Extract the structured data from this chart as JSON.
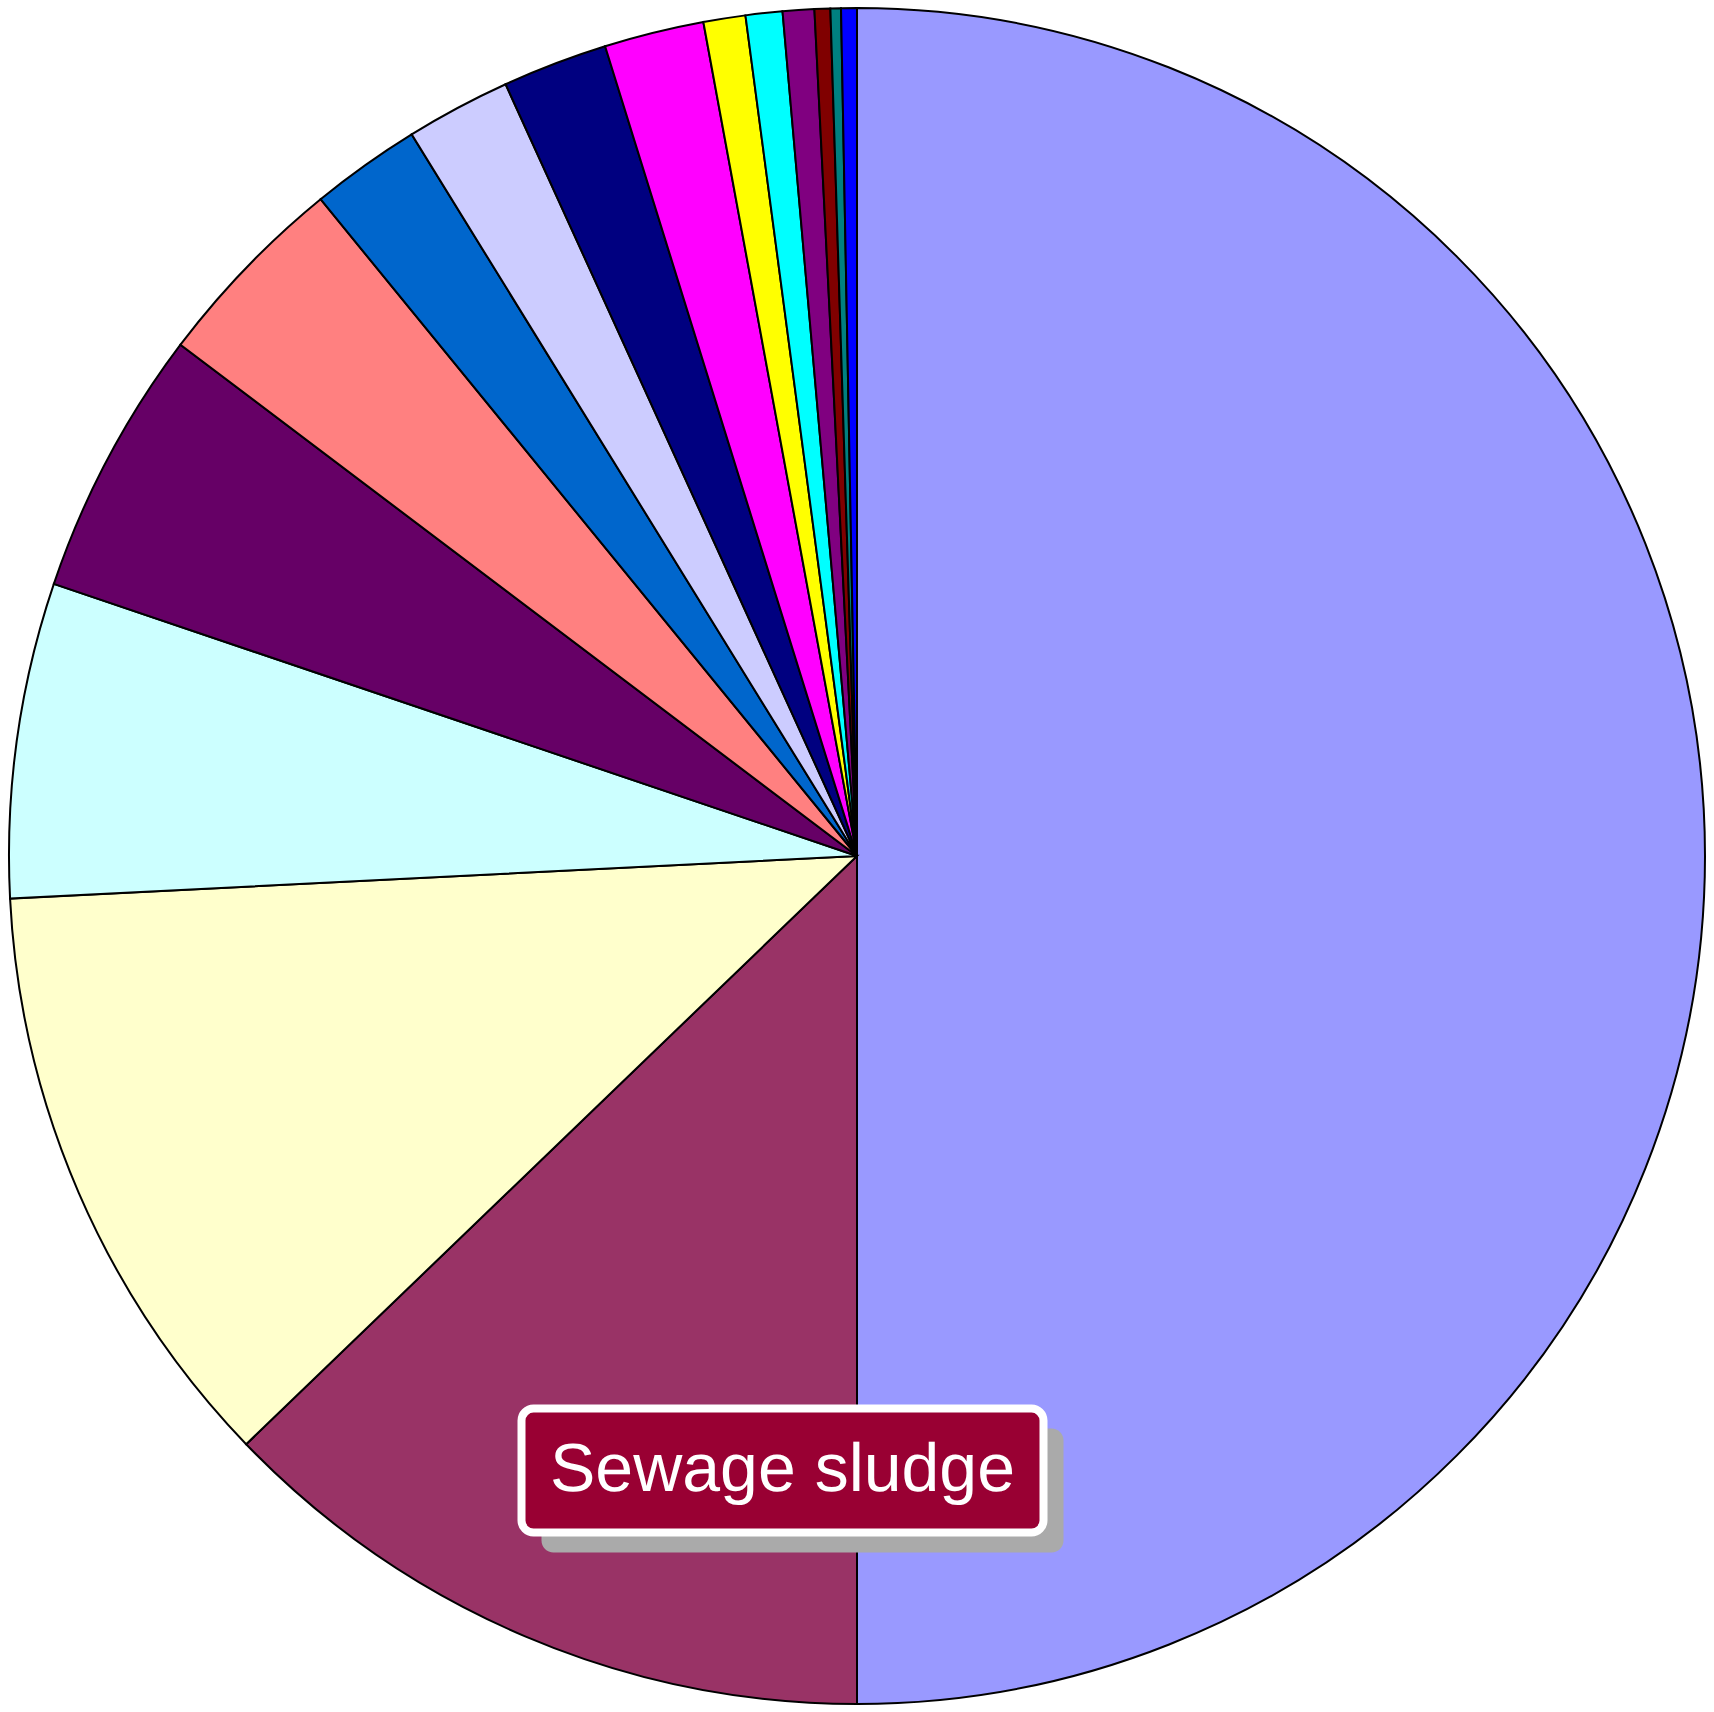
{
  "chart_data": {
    "type": "pie",
    "categories": [
      null,
      "Sewage sludge",
      null,
      null,
      null,
      null,
      null,
      null,
      null,
      null,
      null,
      null,
      null,
      null,
      null,
      null
    ],
    "values": [
      50,
      12.8,
      11.4,
      6.0,
      5.1,
      3.8,
      2.1,
      2.0,
      2.0,
      1.9,
      0.8,
      0.7,
      0.6,
      0.3,
      0.2,
      0.3
    ],
    "colors": [
      "#9999ff",
      "#993366",
      "#ffffcc",
      "#ccffff",
      "#660066",
      "#ff8080",
      "#0066cc",
      "#ccccff",
      "#000080",
      "#ff00ff",
      "#ffff00",
      "#00ffff",
      "#800080",
      "#800000",
      "#008080",
      "#0000ff"
    ],
    "legend": false
  }
}
